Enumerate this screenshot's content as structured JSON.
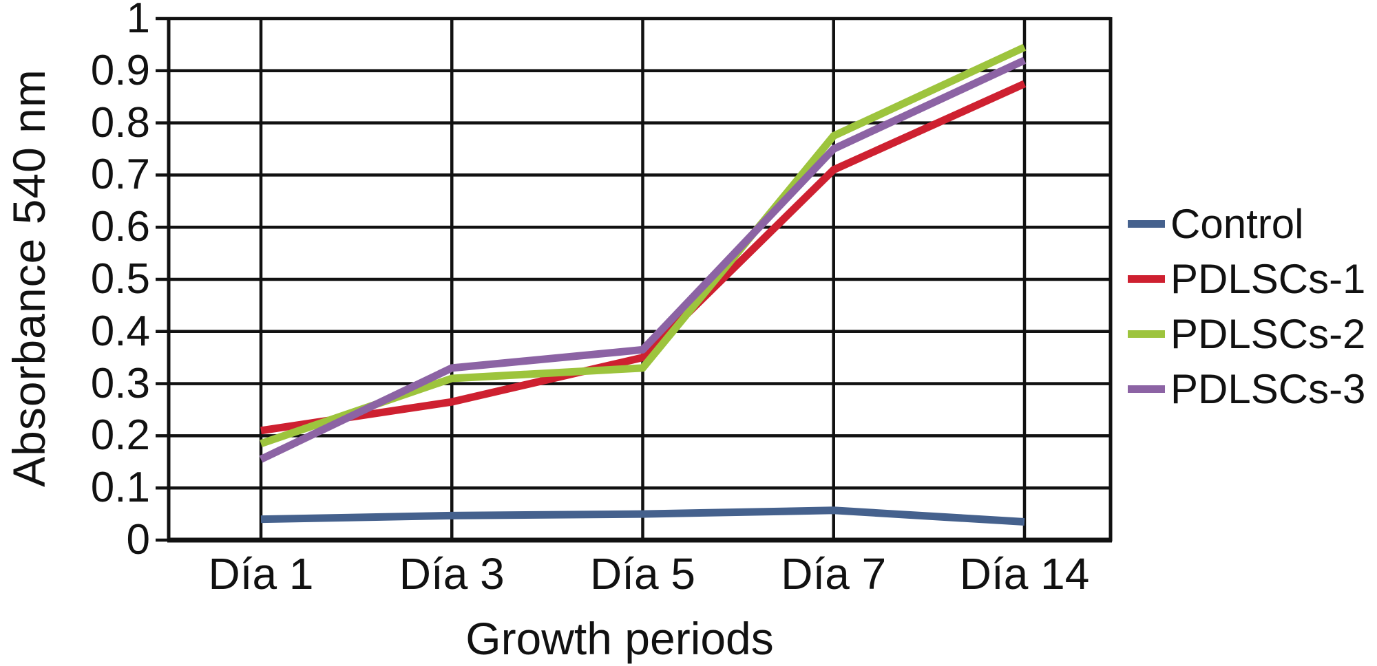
{
  "figure": {
    "background_color": "#ffffff",
    "text_color": "#111111",
    "grid_color": "#111111"
  },
  "chart_data": {
    "type": "line",
    "title": "",
    "xlabel": "Growth periods",
    "ylabel": "Absorbance 540 nm",
    "categories": [
      "Día 1",
      "Día 3",
      "Día 5",
      "Día 7",
      "Día 14"
    ],
    "series": [
      {
        "name": "Control",
        "color": "#45618D",
        "values": [
          0.04,
          0.047,
          0.05,
          0.057,
          0.035
        ]
      },
      {
        "name": "PDLSCs-1",
        "color": "#CE2030",
        "values": [
          0.21,
          0.265,
          0.35,
          0.71,
          0.875
        ]
      },
      {
        "name": "PDLSCs-2",
        "color": "#9DC43D",
        "values": [
          0.185,
          0.31,
          0.33,
          0.775,
          0.945
        ]
      },
      {
        "name": "PDLSCs-3",
        "color": "#8C63A4",
        "values": [
          0.155,
          0.33,
          0.365,
          0.75,
          0.92
        ]
      }
    ],
    "ylim": [
      0,
      1
    ],
    "y_tick_step": 0.1,
    "y_tick_labels": [
      "0",
      "0.1",
      "0.2",
      "0.3",
      "0.4",
      "0.5",
      "0.6",
      "0.7",
      "0.8",
      "0.9",
      "1"
    ],
    "grid": "horizontal and vertical category gridlines, boxed plot area",
    "legend_position": "right",
    "line_width": 11
  }
}
